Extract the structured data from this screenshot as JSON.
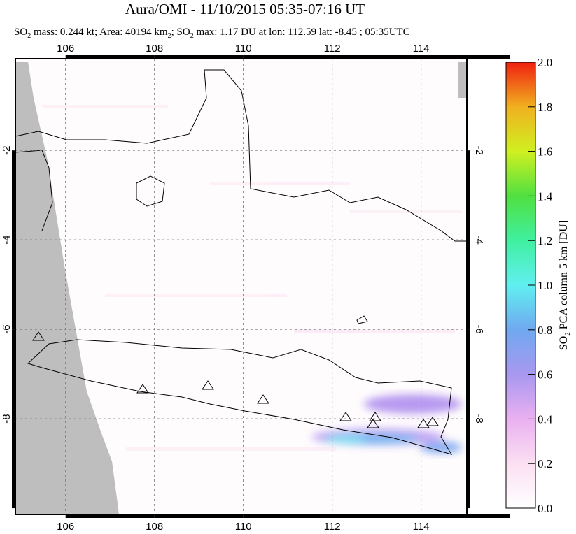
{
  "chart_data": {
    "type": "map",
    "title": "Aura/OMI - 11/10/2015 05:35-07:16 UT",
    "subtitle": [
      "SO",
      "2",
      " mass: 0.244 kt; Area: 40194 km",
      "2",
      "; SO",
      "2",
      " max: 1.17 DU at lon: 112.59 lat: -8.45 ; 05:35UTC"
    ],
    "xlim": [
      104.87,
      115.03
    ],
    "xticks": [
      106,
      108,
      110,
      112,
      114
    ],
    "ylim": [
      -10.14,
      0.05
    ],
    "yticks": [
      -2,
      -4,
      -6,
      -8
    ],
    "grid": true,
    "colorbar": {
      "lim": [
        0,
        2
      ],
      "ticks": [
        {
          "value": 0,
          "label": "0.0"
        },
        0.2,
        0.4,
        0.6,
        0.8,
        {
          "value": 1,
          "label": "1.0"
        },
        1.2,
        1.4,
        1.6,
        1.8,
        {
          "value": 2,
          "label": "2.0"
        }
      ],
      "label": [
        "SO",
        "2",
        " PCA column 5 km [DU]"
      ]
    }
  }
}
